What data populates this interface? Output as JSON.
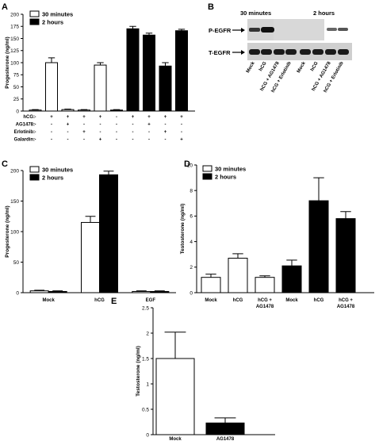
{
  "panels": {
    "A": "A",
    "B": "B",
    "C": "C",
    "D": "D",
    "E": "E"
  },
  "chart_data": [
    {
      "panel": "A",
      "type": "bar",
      "ylabel": "Progesterone (ng/ml)",
      "ylim": [
        0,
        200
      ],
      "yticks": [
        "0",
        "25",
        "50",
        "75",
        "100",
        "125",
        "150",
        "175",
        "200"
      ],
      "legend": [
        "30 minutes",
        "2 hours"
      ],
      "bars": [
        {
          "group": "30 minutes",
          "value": 2,
          "error": 1
        },
        {
          "group": "30 minutes",
          "value": 100,
          "error": 10
        },
        {
          "group": "30 minutes",
          "value": 3,
          "error": 1
        },
        {
          "group": "30 minutes",
          "value": 2,
          "error": 1
        },
        {
          "group": "30 minutes",
          "value": 95,
          "error": 5
        },
        {
          "group": "2 hours",
          "value": 2,
          "error": 1
        },
        {
          "group": "2 hours",
          "value": 170,
          "error": 5
        },
        {
          "group": "2 hours",
          "value": 157,
          "error": 4
        },
        {
          "group": "2 hours",
          "value": 93,
          "error": 7
        },
        {
          "group": "2 hours",
          "value": 166,
          "error": 3
        }
      ],
      "condition_table": [
        {
          "label": "hCG:",
          "signs": [
            "-",
            "+",
            "+",
            "+",
            "+",
            "-",
            "+",
            "+",
            "+",
            "+"
          ]
        },
        {
          "label": "AG1478:",
          "signs": [
            "-",
            "-",
            "+",
            "-",
            "-",
            "-",
            "-",
            "+",
            "-",
            "-"
          ]
        },
        {
          "label": "Erlotinib:",
          "signs": [
            "-",
            "-",
            "-",
            "+",
            "-",
            "-",
            "-",
            "-",
            "+",
            "-"
          ]
        },
        {
          "label": "Galardin:",
          "signs": [
            "-",
            "-",
            "-",
            "-",
            "+",
            "-",
            "-",
            "-",
            "-",
            "+"
          ]
        }
      ]
    },
    {
      "panel": "C",
      "type": "bar",
      "ylabel": "Progesterone (ng/ml)",
      "ylim": [
        0,
        200
      ],
      "yticks": [
        "0",
        "50",
        "100",
        "150",
        "200"
      ],
      "legend": [
        "30 minutes",
        "2 hours"
      ],
      "categories": [
        "Mock",
        "hCG",
        "EGF"
      ],
      "series": [
        {
          "name": "30 minutes",
          "values": [
            3,
            115,
            2
          ],
          "errors": [
            1,
            10,
            1
          ]
        },
        {
          "name": "2 hours",
          "values": [
            2,
            193,
            2
          ],
          "errors": [
            1,
            6,
            1
          ]
        }
      ]
    },
    {
      "panel": "D",
      "type": "bar",
      "ylabel": "Testosterone (ng/ml)",
      "ylim": [
        0,
        10
      ],
      "yticks": [
        "0",
        "2",
        "4",
        "6",
        "8",
        "10"
      ],
      "legend": [
        "30 minutes",
        "2 hours"
      ],
      "bars": [
        {
          "category": "Mock",
          "group": "30 minutes",
          "value": 1.2,
          "error": 0.25
        },
        {
          "category": "hCG",
          "group": "30 minutes",
          "value": 2.7,
          "error": 0.35
        },
        {
          "category": "hCG + AG1478",
          "group": "30 minutes",
          "value": 1.2,
          "error": 0.12
        },
        {
          "category": "Mock",
          "group": "2 hours",
          "value": 2.1,
          "error": 0.45
        },
        {
          "category": "hCG",
          "group": "2 hours",
          "value": 7.2,
          "error": 1.8
        },
        {
          "category": "hCG + AG1478",
          "group": "2 hours",
          "value": 5.8,
          "error": 0.55
        }
      ]
    },
    {
      "panel": "E",
      "type": "bar",
      "ylabel": "Testosterone (ng/ml)",
      "ylim": [
        0,
        2.5
      ],
      "yticks": [
        "0",
        "0.5",
        "1",
        "1.5",
        "2",
        "2.5"
      ],
      "categories": [
        "Mock",
        "AG1478"
      ],
      "values": [
        1.5,
        0.23
      ],
      "errors": [
        0.52,
        0.1
      ]
    }
  ],
  "blot": {
    "time_labels": [
      "30 minutes",
      "2 hours"
    ],
    "row_labels": [
      "P-EGFR",
      "T-EGFR"
    ],
    "lane_labels": [
      "Mock",
      "hCG",
      "hCG + AG1478",
      "hCG + Erlotinib"
    ]
  },
  "colors": {
    "filled": "#000000",
    "open": "#ffffff",
    "blot_bg": "#d4d4d4",
    "band": "#1a1a1a"
  }
}
